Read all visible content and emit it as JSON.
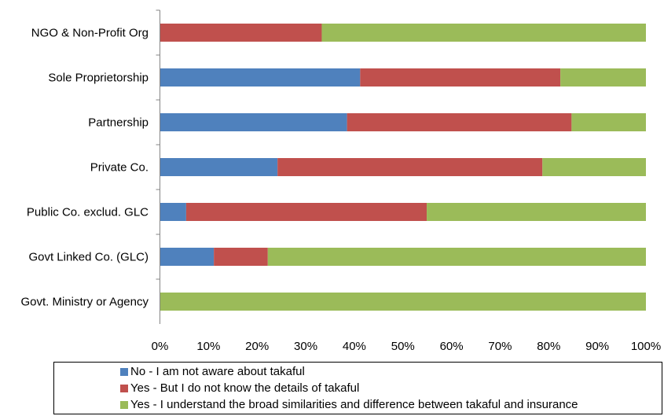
{
  "chart_data": {
    "type": "bar",
    "orientation": "horizontal",
    "stacked": "percent",
    "categories": [
      "NGO & Non-Profit Org",
      "Sole Proprietorship",
      "Partnership",
      "Private Co.",
      "Public Co. exclud. GLC",
      "Govt Linked Co. (GLC)",
      "Govt. Ministry or Agency"
    ],
    "series": [
      {
        "name": "No - I am not aware about takaful",
        "color": "#4f81bd",
        "values": [
          0,
          41.2,
          38.5,
          24.2,
          5.4,
          11.1,
          0
        ]
      },
      {
        "name": "Yes - But I do not know the details of takaful",
        "color": "#c0504d",
        "values": [
          33.3,
          41.2,
          46.2,
          54.5,
          49.5,
          11.1,
          0
        ]
      },
      {
        "name": "Yes - I understand the broad similarities and difference between takaful and insurance",
        "color": "#9bbb59",
        "values": [
          66.7,
          17.6,
          15.3,
          21.3,
          45.1,
          77.8,
          100
        ]
      }
    ],
    "xticks": [
      "0%",
      "10%",
      "20%",
      "30%",
      "40%",
      "50%",
      "60%",
      "70%",
      "80%",
      "90%",
      "100%"
    ],
    "xlim": [
      0,
      100
    ],
    "grid": false,
    "legend_position": "bottom"
  }
}
